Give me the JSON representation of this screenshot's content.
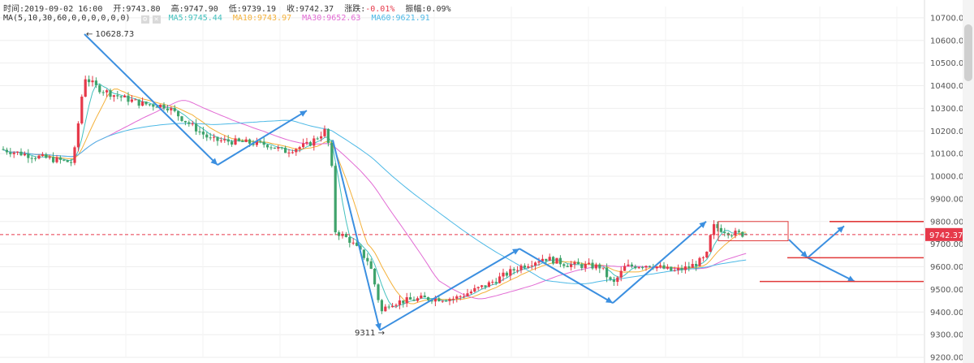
{
  "header": {
    "time_label": "时间:2019-09-02 16:00",
    "open_label": "开:9743.80",
    "high_label": "高:9747.90",
    "low_label": "低:9739.19",
    "close_label": "收:9742.37",
    "change_label": "涨跌:",
    "change_value": "-0.01%",
    "amplitude_label": "振幅:0.09%",
    "ma_params": "MA(5,10,30,60,0,0,0,0,0,0)",
    "ma5_label": "MA5:9745.44",
    "ma10_label": "MA10:9743.97",
    "ma30_label": "MA30:9652.63",
    "ma60_label": "MA60:9621.91"
  },
  "colors": {
    "up": "#e6394a",
    "down": "#3fa36b",
    "ma5": "#43c1be",
    "ma10": "#f4b13a",
    "ma30": "#e26bd4",
    "ma60": "#4db9e6",
    "arrow": "#3b8fe0",
    "annotation": "#e03a3a",
    "grid": "#eeeeee",
    "price_tag": "#e6394a"
  },
  "chart_data": {
    "type": "candlestick",
    "ylim": [
      9200,
      10750
    ],
    "y_ticks": [
      9200,
      9300,
      9400,
      9500,
      9600,
      9700,
      9800,
      9900,
      10000,
      10100,
      10200,
      10300,
      10400,
      10500,
      10600,
      10700
    ],
    "y_tick_labels": [
      "9200.00",
      "9300.00",
      "9400.00",
      "9500.00",
      "9600.00",
      "9700.00",
      "9800.00",
      "9900.00",
      "10000.00",
      "10100.00",
      "10200.00",
      "10300.00",
      "10400.00",
      "10500.00",
      "10600.00",
      "10700.00"
    ],
    "current_price": 9742.37,
    "current_price_label": "9742.37",
    "high_mark": {
      "value": 10628.73,
      "label": "10628.73"
    },
    "low_mark": {
      "value": 9311,
      "label": "9311"
    },
    "trend_arrows": [
      [
        10628,
        10050
      ],
      [
        10050,
        10290
      ],
      [
        10160,
        9320
      ],
      [
        9320,
        9680
      ],
      [
        9680,
        9440
      ],
      [
        9440,
        9800
      ],
      [
        9720,
        9640
      ],
      [
        9640,
        9780
      ],
      [
        9640,
        9535
      ]
    ],
    "levels": [
      {
        "value": 9800
      },
      {
        "value": 9640
      },
      {
        "value": 9535
      }
    ],
    "box": {
      "low": 9715,
      "high": 9800
    }
  }
}
